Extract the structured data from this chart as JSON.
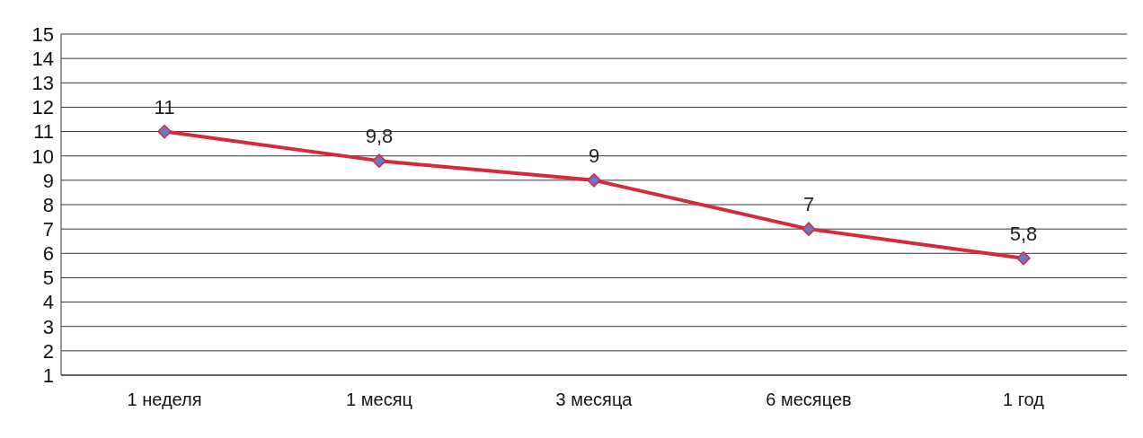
{
  "chart_data": {
    "type": "line",
    "categories": [
      "1 неделя",
      "1 месяц",
      "3 месяца",
      "6 месяцев",
      "1 год"
    ],
    "series": [
      {
        "color": "#d42a3a",
        "values": [
          11,
          9.8,
          9,
          7,
          5.8
        ]
      }
    ],
    "value_labels": [
      "11",
      "9,8",
      "9",
      "7",
      "5,8"
    ],
    "ylim": [
      1,
      15
    ],
    "yticks": [
      1,
      2,
      3,
      4,
      5,
      6,
      7,
      8,
      9,
      10,
      11,
      12,
      13,
      14,
      15
    ],
    "grid": "y",
    "marker": "diamond",
    "line_style": "solid"
  }
}
